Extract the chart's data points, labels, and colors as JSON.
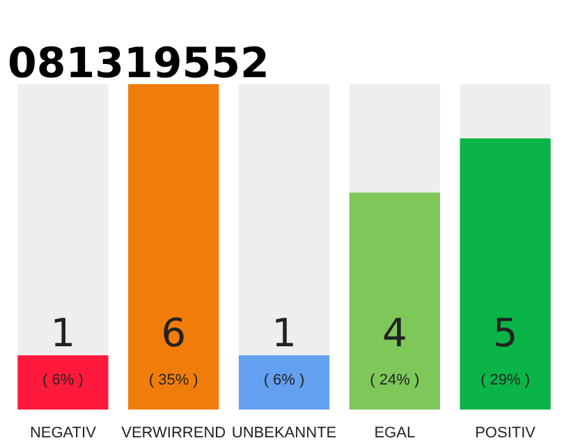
{
  "chart_data": {
    "type": "bar",
    "title": "081319552",
    "categories": [
      "NEGATIV",
      "VERWIRREND",
      "UNBEKANNTE",
      "EGAL",
      "POSITIV"
    ],
    "values": [
      1,
      6,
      1,
      4,
      5
    ],
    "colors": [
      "#ff1a3c",
      "#f07d0a",
      "#64a0f0",
      "#7ec85a",
      "#0ab446"
    ],
    "ylim": [
      0,
      6
    ],
    "data_labels": true,
    "tick_labels": "x",
    "grid": false,
    "annotations": [
      "( 6% )",
      "( 35% )",
      "( 6% )",
      "( 24% )",
      "( 29% )"
    ]
  }
}
